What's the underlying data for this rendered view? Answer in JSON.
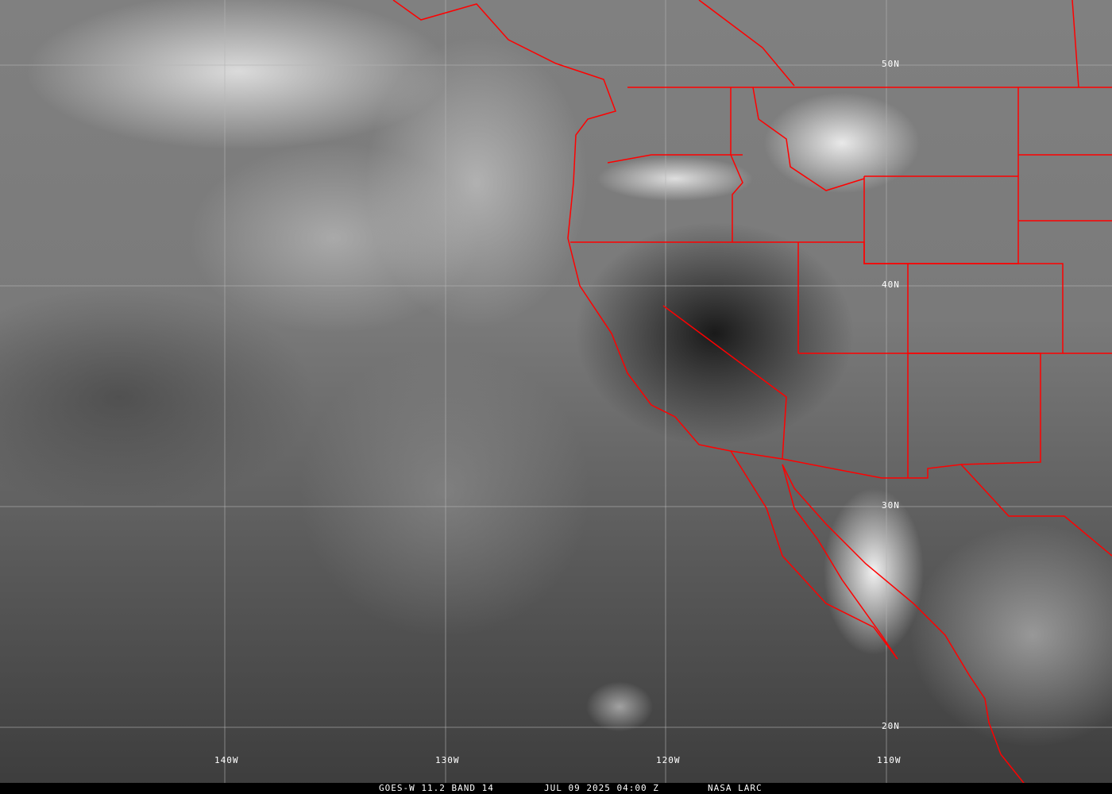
{
  "caption": {
    "product": "GOES-W 11.2 BAND 14",
    "datetime": "JUL 09 2025 04:00 Z",
    "credit": "NASA LARC"
  },
  "grid": {
    "longitudes": [
      "140W",
      "130W",
      "120W",
      "110W"
    ],
    "latitudes": [
      "50N",
      "40N",
      "30N",
      "20N"
    ]
  },
  "colors": {
    "borders": "#ff0000",
    "grid": "#b4b4b4",
    "caption_bg": "#000000"
  }
}
